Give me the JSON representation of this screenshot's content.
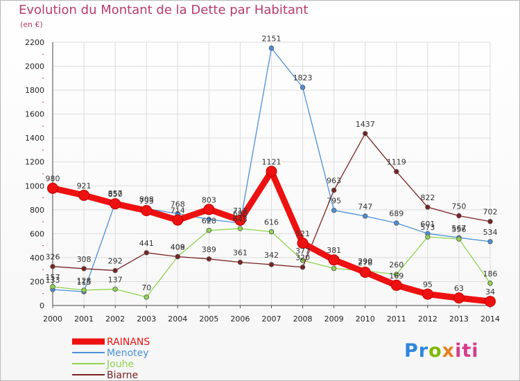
{
  "title": "Evolution du Montant de la Dette par Habitant",
  "subtitle": "(en €)",
  "logo": {
    "text": "Proxiti",
    "parts": [
      "Pr",
      "o",
      "x",
      "iti"
    ]
  },
  "chart_data": {
    "type": "line",
    "title": "Evolution du Montant de la Dette par Habitant",
    "ylabel": "(en €)",
    "xlabel": "",
    "ylim": [
      0,
      2200
    ],
    "yticks": [
      0,
      200,
      400,
      600,
      800,
      1000,
      1200,
      1400,
      1600,
      1800,
      2000,
      2200
    ],
    "x": [
      "2000",
      "2001",
      "2002",
      "2003",
      "2004",
      "2005",
      "2006",
      "2007",
      "2008",
      "2009",
      "2010",
      "2011",
      "2012",
      "2013",
      "2014"
    ],
    "grid": true,
    "legend_position": "bottom-left",
    "series": [
      {
        "name": "RAINANS",
        "color": "#ee1111",
        "values": [
          980,
          921,
          850,
          793,
          714,
          803,
          713,
          1121,
          521,
          381,
          278,
          169,
          95,
          63,
          34
        ]
      },
      {
        "name": "Menotey",
        "color": "#4a90d9",
        "values": [
          133,
          115,
          857,
          808,
          768,
          720,
          688,
          2151,
          1823,
          795,
          747,
          689,
          601,
          567,
          534
        ]
      },
      {
        "name": "Jouhe",
        "color": "#8fd44f",
        "values": [
          157,
          128,
          137,
          70,
          409,
          628,
          643,
          616,
          377,
          310,
          290,
          260,
          573,
          556,
          186
        ]
      },
      {
        "name": "Biarne",
        "color": "#7a2222",
        "values": [
          326,
          308,
          292,
          441,
          408,
          389,
          361,
          342,
          320,
          963,
          1437,
          1119,
          822,
          750,
          702
        ]
      }
    ],
    "data_labels": [
      [
        "980",
        "921",
        "850",
        "793",
        "714",
        "803",
        "713",
        "1121",
        "521",
        "381",
        "278",
        "169",
        "95",
        "63",
        "34"
      ],
      [
        "133",
        "115",
        "857",
        "808",
        "768",
        "",
        "688",
        "2151",
        "1823",
        "795",
        "747",
        "689",
        "601",
        "567",
        "534"
      ],
      [
        "157",
        "128",
        "137",
        "70",
        "409",
        "628",
        "643",
        "616",
        "377",
        "",
        "290",
        "260",
        "573",
        "556",
        "186"
      ],
      [
        "326",
        "308",
        "292",
        "441",
        "408",
        "389",
        "361",
        "342",
        "320",
        "963",
        "1437",
        "1119",
        "822",
        "750",
        "702"
      ]
    ]
  }
}
